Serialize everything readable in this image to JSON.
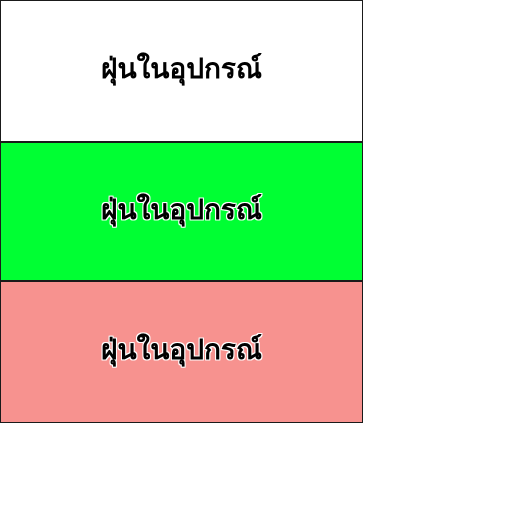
{
  "panels": [
    {
      "label": "ฝุ่นในอุปกรณ์",
      "background": "#ffffff",
      "outlined": false
    },
    {
      "label": "ฝุ่นในอุปกรณ์",
      "background": "#00ff33",
      "outlined": true
    },
    {
      "label": "ฝุ่นในอุปกรณ์",
      "background": "#f7928f",
      "outlined": true
    }
  ],
  "colors": {
    "border": "#1a1a1a",
    "text": "#000000",
    "outline": "#ffffff"
  }
}
